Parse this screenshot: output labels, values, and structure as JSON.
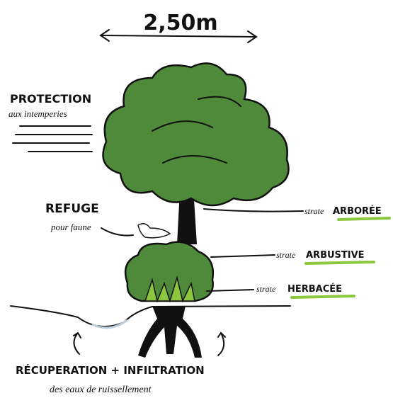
{
  "dimension": {
    "label": "2,50m"
  },
  "protection": {
    "title": "PROTECTION",
    "subtitle": "aux intemperies"
  },
  "refuge": {
    "title": "REFUGE",
    "subtitle": "pour faune"
  },
  "layers": [
    {
      "prefix": "strate",
      "label": "ARBORÉE"
    },
    {
      "prefix": "strate",
      "label": "ARBUSTIVE"
    },
    {
      "prefix": "strate",
      "label": "HERBACÉE"
    }
  ],
  "water": {
    "title": "RÉCUPERATION + INFILTRATION",
    "subtitle": "des eaux de ruissellement"
  }
}
